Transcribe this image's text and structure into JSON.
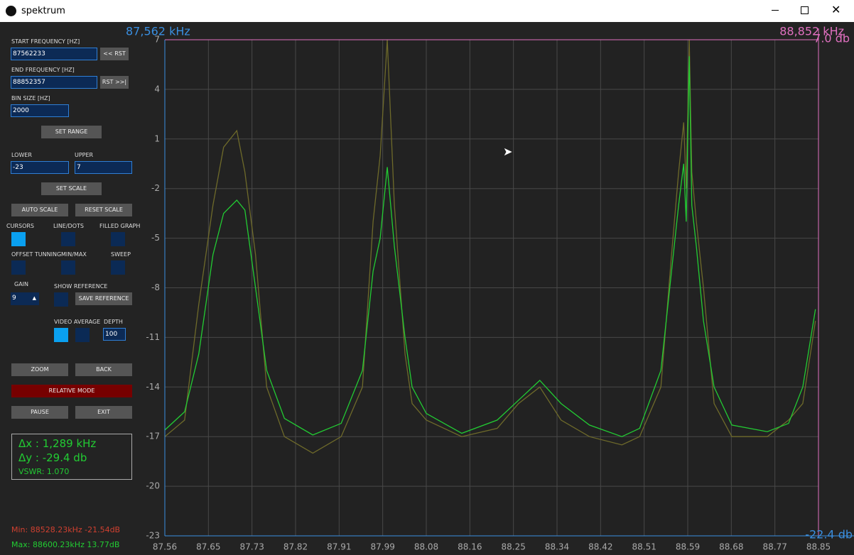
{
  "window": {
    "title": "spektrum"
  },
  "controls": {
    "start_label": "START FREQUENCY [HZ]",
    "start_value": "87562233",
    "start_button": "<< RST",
    "end_label": "END FREQUENCY [HZ]",
    "end_value": "88852357",
    "end_button": "RST >>|",
    "bin_label": "BIN SIZE [HZ]",
    "bin_value": "2000",
    "set_range": "SET RANGE",
    "lower_label": "LOWER",
    "lower_value": "-23",
    "upper_label": "UPPER",
    "upper_value": "7",
    "set_scale": "SET SCALE",
    "auto_scale": "AUTO SCALE",
    "reset_scale": "RESET SCALE",
    "cursors": "CURSORS",
    "line_dots": "LINE/DOTS",
    "filled_graph": "FILLED GRAPH",
    "offset_tunning": "OFFSET TUNNING",
    "min_max": "MIN/MAX",
    "sweep": "SWEEP",
    "gain_label": "GAIN",
    "gain_value": "9",
    "show_reference": "SHOW REFERENCE",
    "save_reference": "SAVE REFERENCE",
    "video_average": "VIDEO AVERAGE",
    "depth_label": "DEPTH",
    "depth_value": "100",
    "zoom": "ZOOM",
    "back": "BACK",
    "relative_mode": "RELATIVE MODE",
    "pause": "PAUSE",
    "exit": "EXIT"
  },
  "info": {
    "dx": "Δx : 1,289 kHz",
    "dy": "Δy : -29.4 db",
    "vswr": "VSWR: 1.070"
  },
  "status": {
    "min": "Min: 88528.23kHz -21.54dB",
    "max": "Max: 88600.23kHz 13.77dB"
  },
  "cursors": {
    "left_freq": "87,562 kHz",
    "right_freq": "88,852 kHz",
    "top_db": "7.0 db",
    "bottom_db": "-22.4 db"
  },
  "chart_data": {
    "type": "line",
    "grid": true,
    "xlim": [
      87.562,
      88.852
    ],
    "xticks": [
      {
        "value": 87.562,
        "label": "87.56"
      },
      {
        "value": 87.648,
        "label": "87.65"
      },
      {
        "value": 87.734,
        "label": "87.73"
      },
      {
        "value": 87.82,
        "label": "87.82"
      },
      {
        "value": 87.906,
        "label": "87.91"
      },
      {
        "value": 87.992,
        "label": "87.99"
      },
      {
        "value": 88.078,
        "label": "88.08"
      },
      {
        "value": 88.164,
        "label": "88.16"
      },
      {
        "value": 88.25,
        "label": "88.25"
      },
      {
        "value": 88.336,
        "label": "88.34"
      },
      {
        "value": 88.422,
        "label": "88.42"
      },
      {
        "value": 88.508,
        "label": "88.51"
      },
      {
        "value": 88.594,
        "label": "88.59"
      },
      {
        "value": 88.68,
        "label": "88.68"
      },
      {
        "value": 88.766,
        "label": "88.77"
      },
      {
        "value": 88.852,
        "label": "88.85"
      }
    ],
    "ylim": [
      -23,
      7
    ],
    "yticks": [
      7,
      4,
      1,
      -2,
      -5,
      -8,
      -11,
      -14,
      -17,
      -20,
      -23
    ],
    "x": [
      87.562,
      87.601,
      87.629,
      87.657,
      87.678,
      87.704,
      87.72,
      87.741,
      87.763,
      87.798,
      87.854,
      87.91,
      87.952,
      87.973,
      87.987,
      88.001,
      88.015,
      88.036,
      88.05,
      88.078,
      88.148,
      88.218,
      88.26,
      88.302,
      88.344,
      88.4,
      88.464,
      88.499,
      88.541,
      88.562,
      88.576,
      88.586,
      88.591,
      88.597,
      88.602,
      88.611,
      88.625,
      88.646,
      88.681,
      88.751,
      88.793,
      88.821,
      88.846
    ],
    "series": [
      {
        "color": "#6e6a2a",
        "values": [
          -17,
          -16,
          -9,
          -3,
          0.5,
          1.5,
          -1,
          -6,
          -14,
          -17,
          -18,
          -17,
          -14,
          -4,
          0,
          7,
          -3,
          -12,
          -15,
          -16,
          -17,
          -16.5,
          -15,
          -14,
          -16,
          -17,
          -17.5,
          -17,
          -14,
          -6,
          -1,
          2,
          -2,
          7,
          -1,
          -4,
          -8,
          -15,
          -17,
          -17,
          -16,
          -15,
          -10
        ]
      },
      {
        "color": "#22cc33",
        "values": [
          -16.6,
          -15.5,
          -12,
          -6,
          -3.5,
          -2.7,
          -3.3,
          -8,
          -13,
          -15.9,
          -16.9,
          -16.2,
          -13,
          -7,
          -5,
          -0.7,
          -5.5,
          -11,
          -14,
          -15.6,
          -16.8,
          -16,
          -14.8,
          -13.6,
          -15,
          -16.3,
          -17,
          -16.5,
          -13,
          -7,
          -3,
          -0.5,
          -4,
          6,
          -3,
          -5.5,
          -10,
          -14,
          -16.3,
          -16.7,
          -16.2,
          -14,
          -9.3
        ]
      }
    ]
  }
}
